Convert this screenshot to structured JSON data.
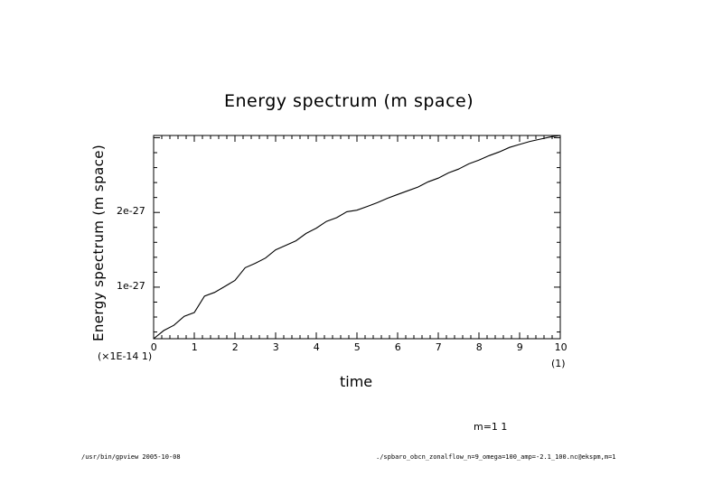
{
  "chart_data": {
    "type": "line",
    "title": "Energy spectrum (m space)",
    "xlabel": "time",
    "ylabel": "Energy spectrum (m space)",
    "x_ticks": [
      "0",
      "1",
      "2",
      "3",
      "4",
      "5",
      "6",
      "7",
      "8",
      "9",
      "10"
    ],
    "x_scale_note": "(1)",
    "y_ticks": [
      {
        "label": "1e-27",
        "value": 1e-27
      },
      {
        "label": "2e-27",
        "value": 2e-27
      }
    ],
    "y_scale_note": "(×1E-14 1)",
    "xlim": [
      0,
      10
    ],
    "ylim": [
      3.1e-28,
      3.03e-27
    ],
    "legend_text": "m=1 1",
    "series": [
      {
        "color": "#000000",
        "x": [
          0,
          0.25,
          0.5,
          0.75,
          1.0,
          1.25,
          1.5,
          1.75,
          2.0,
          2.25,
          2.5,
          2.75,
          3.0,
          3.25,
          3.5,
          3.75,
          4.0,
          4.25,
          4.5,
          4.75,
          5.0,
          5.25,
          5.5,
          5.75,
          6.0,
          6.25,
          6.5,
          6.75,
          7.0,
          7.25,
          7.5,
          7.75,
          8.0,
          8.25,
          8.5,
          8.75,
          9.0,
          9.25,
          9.5,
          9.75,
          10.0
        ],
        "y": [
          3.1e-28,
          4.2e-28,
          4.9e-28,
          6.1e-28,
          6.6e-28,
          8.8e-28,
          9.3e-28,
          1.01e-27,
          1.09e-27,
          1.26e-27,
          1.32e-27,
          1.39e-27,
          1.5e-27,
          1.56e-27,
          1.62e-27,
          1.72e-27,
          1.79e-27,
          1.88e-27,
          1.93e-27,
          2.01e-27,
          2.03e-27,
          2.08e-27,
          2.13e-27,
          2.19e-27,
          2.24e-27,
          2.29e-27,
          2.34e-27,
          2.41e-27,
          2.46e-27,
          2.53e-27,
          2.58e-27,
          2.65e-27,
          2.7e-27,
          2.76e-27,
          2.81e-27,
          2.87e-27,
          2.91e-27,
          2.95e-27,
          2.98e-27,
          3.01e-27,
          3.03e-27
        ]
      }
    ]
  },
  "footer": {
    "left": "/usr/bin/gpview  2005-10-08",
    "right": "./spbaro_obcn_zonalflow_n=9_omega=100_amp=-2.1_100.nc@ekspm,m=1"
  }
}
